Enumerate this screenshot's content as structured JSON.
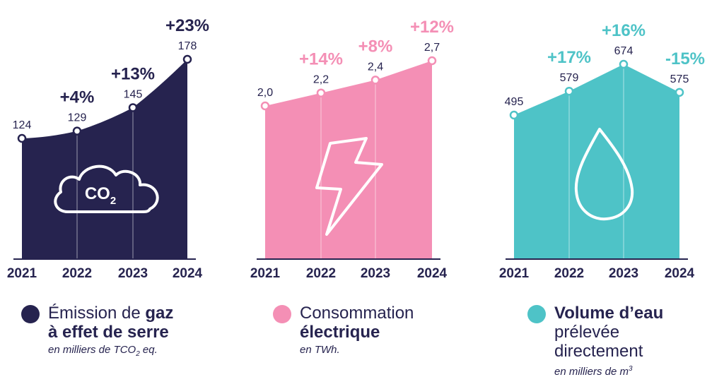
{
  "colors": {
    "navy": "#26234f",
    "pink": "#f48fb5",
    "teal": "#4ec3c7",
    "white": "#ffffff"
  },
  "chart_data": [
    {
      "type": "area",
      "color": "#26234f",
      "icon": "co2-cloud-icon",
      "icon_text": "CO2",
      "categories": [
        "2021",
        "2022",
        "2023",
        "2024"
      ],
      "values": [
        124,
        129,
        145,
        178
      ],
      "value_labels": [
        "124",
        "129",
        "145",
        "178"
      ],
      "changes": [
        "",
        "+4%",
        "+13%",
        "+23%"
      ],
      "legend": {
        "pre": "Émission de ",
        "bold1": "gaz",
        "bold2": "à effet de serre",
        "unit": "en milliers de TCO",
        "unit_sub": "2",
        "unit_post": " eq."
      }
    },
    {
      "type": "area",
      "color": "#f48fb5",
      "icon": "lightning-bolt-icon",
      "categories": [
        "2021",
        "2022",
        "2023",
        "2024"
      ],
      "values": [
        2.0,
        2.2,
        2.4,
        2.7
      ],
      "value_labels": [
        "2,0",
        "2,2",
        "2,4",
        "2,7"
      ],
      "changes": [
        "",
        "+14%",
        "+8%",
        "+12%"
      ],
      "legend": {
        "line1": "Consommation",
        "bold": "électrique",
        "unit": "en TWh."
      }
    },
    {
      "type": "area",
      "color": "#4ec3c7",
      "icon": "water-drop-icon",
      "categories": [
        "2021",
        "2022",
        "2023",
        "2024"
      ],
      "values": [
        495,
        579,
        674,
        575
      ],
      "value_labels": [
        "495",
        "579",
        "674",
        "575"
      ],
      "changes": [
        "",
        "+17%",
        "+16%",
        "-15%"
      ],
      "legend": {
        "bold": "Volume d’eau",
        "line2": "prélevée",
        "line3": "directement",
        "unit": "en milliers de m",
        "unit_sup": "3"
      }
    }
  ]
}
